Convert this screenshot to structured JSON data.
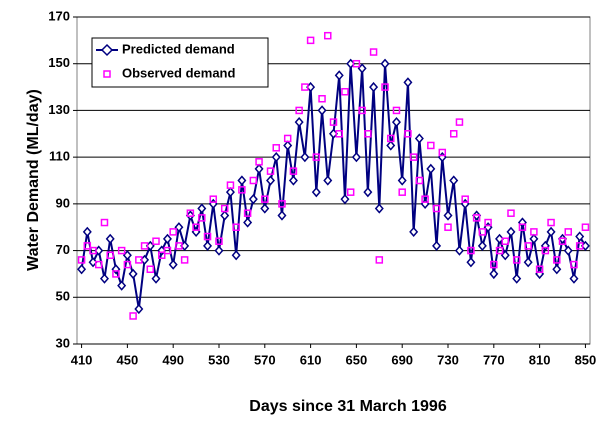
{
  "chart_data": {
    "type": "line",
    "x_label": "Days since 31 March 1996",
    "y_label": "Water Demand (ML/day)",
    "xlim": [
      406,
      854
    ],
    "ylim": [
      30,
      170
    ],
    "xticks": [
      410,
      450,
      490,
      530,
      570,
      610,
      650,
      690,
      730,
      770,
      810,
      850
    ],
    "yticks": [
      30,
      50,
      70,
      90,
      110,
      130,
      150,
      170
    ],
    "grid": true,
    "x": [
      410,
      415,
      420,
      425,
      430,
      435,
      440,
      445,
      450,
      455,
      460,
      465,
      470,
      475,
      480,
      485,
      490,
      495,
      500,
      505,
      510,
      515,
      520,
      525,
      530,
      535,
      540,
      545,
      550,
      555,
      560,
      565,
      570,
      575,
      580,
      585,
      590,
      595,
      600,
      605,
      610,
      615,
      620,
      625,
      630,
      635,
      640,
      645,
      650,
      655,
      660,
      665,
      670,
      675,
      680,
      685,
      690,
      695,
      700,
      705,
      710,
      715,
      720,
      725,
      730,
      735,
      740,
      745,
      750,
      755,
      760,
      765,
      770,
      775,
      780,
      785,
      790,
      795,
      800,
      805,
      810,
      815,
      820,
      825,
      830,
      835,
      840,
      845,
      850
    ],
    "series": [
      {
        "name": "Predicted demand",
        "color": "#000080",
        "marker": "diamond",
        "line": true,
        "values": [
          62,
          78,
          65,
          70,
          58,
          75,
          62,
          55,
          68,
          60,
          45,
          66,
          72,
          58,
          70,
          75,
          64,
          80,
          72,
          85,
          78,
          88,
          72,
          90,
          70,
          85,
          95,
          68,
          100,
          82,
          92,
          105,
          88,
          100,
          110,
          85,
          115,
          100,
          125,
          110,
          140,
          95,
          130,
          100,
          120,
          145,
          92,
          150,
          110,
          148,
          95,
          140,
          88,
          150,
          115,
          125,
          100,
          142,
          78,
          118,
          90,
          105,
          72,
          110,
          85,
          100,
          70,
          90,
          65,
          85,
          72,
          80,
          60,
          75,
          68,
          78,
          58,
          82,
          65,
          75,
          60,
          72,
          78,
          62,
          75,
          70,
          58,
          76,
          72
        ]
      },
      {
        "name": "Observed demand",
        "color": "#ff00ff",
        "marker": "square",
        "line": false,
        "values": [
          66,
          72,
          70,
          64,
          82,
          68,
          60,
          70,
          64,
          42,
          66,
          72,
          62,
          74,
          68,
          70,
          78,
          72,
          66,
          86,
          80,
          84,
          76,
          92,
          74,
          88,
          98,
          80,
          96,
          86,
          100,
          108,
          92,
          104,
          114,
          90,
          118,
          104,
          130,
          140,
          160,
          110,
          135,
          162,
          125,
          120,
          138,
          95,
          150,
          130,
          120,
          155,
          66,
          140,
          118,
          130,
          95,
          120,
          110,
          100,
          92,
          115,
          88,
          112,
          80,
          120,
          125,
          92,
          70,
          84,
          78,
          82,
          64,
          70,
          74,
          86,
          66,
          80,
          72,
          78,
          62,
          70,
          82,
          66,
          74,
          78,
          64,
          72,
          80
        ]
      }
    ]
  }
}
